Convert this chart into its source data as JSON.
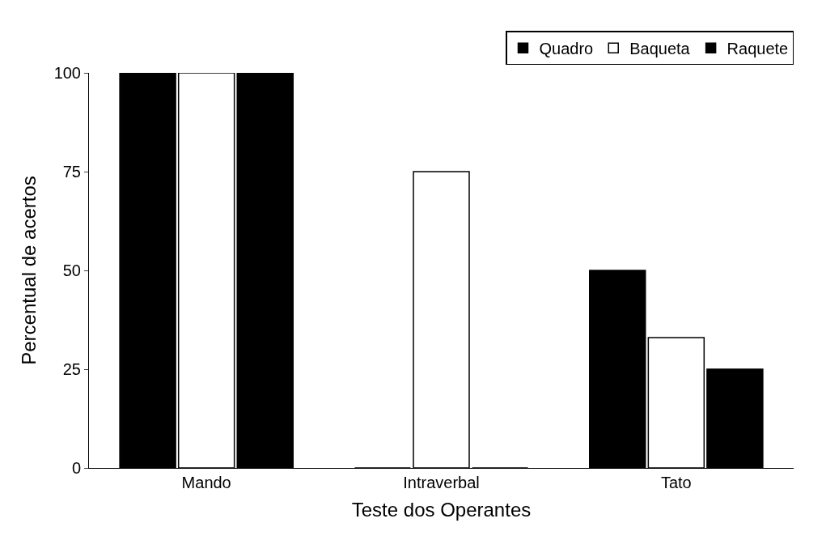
{
  "chart_data": {
    "type": "bar",
    "xlabel": "Teste dos Operantes",
    "ylabel": "Percentual de acertos",
    "categories": [
      "Mando",
      "Intraverbal",
      "Tato"
    ],
    "series": [
      {
        "name": "Quadro",
        "color": "#000000",
        "values": [
          100,
          0,
          50
        ]
      },
      {
        "name": "Baqueta",
        "color": "#ffffff",
        "values": [
          100,
          75,
          33
        ]
      },
      {
        "name": "Raquete",
        "color": "#000000",
        "values": [
          100,
          0,
          25
        ]
      }
    ],
    "ylim": [
      0,
      100
    ],
    "yticks": [
      0,
      25,
      50,
      75,
      100
    ],
    "grid": false,
    "legend": "top right"
  }
}
